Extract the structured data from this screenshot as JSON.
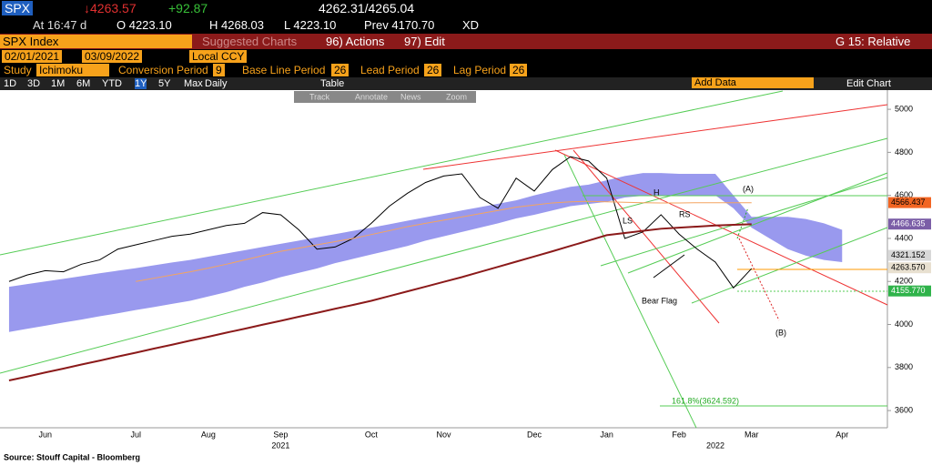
{
  "header": {
    "ticker": "SPX",
    "last": "↓4263.57",
    "change": "+92.87",
    "bid_ask": "4262.31/4265.04",
    "time": "At 16:47 d",
    "open": "O 4223.10",
    "high": "H 4268.03",
    "low": "L 4223.10",
    "prev": "Prev 4170.70",
    "flag": "XD"
  },
  "toolbar": {
    "security": "SPX Index",
    "suggested": "Suggested Charts",
    "actions": "96) Actions",
    "edit": "97) Edit",
    "relative": "G 15: Relative",
    "start_date": "02/01/2021",
    "end_date": "03/09/2022",
    "currency": "Local CCY",
    "study_label": "Study",
    "study": "Ichimoku",
    "conv_label": "Conversion Period",
    "conv": "9",
    "base_label": "Base Line Period",
    "base": "26",
    "lead_label": "Lead Period",
    "lead": "26",
    "lag_label": "Lag Period",
    "lag": "26",
    "ranges": [
      "1D",
      "3D",
      "1M",
      "6M",
      "YTD",
      "1Y",
      "5Y",
      "Max"
    ],
    "frequency": "Daily",
    "table": "Table",
    "add_data": "Add Data",
    "edit_chart": "Edit Chart",
    "tools": [
      "Track",
      "Annotate",
      "News",
      "Zoom"
    ]
  },
  "chart_data": {
    "type": "line",
    "categories": [
      null,
      null,
      "Jun",
      null,
      null,
      null,
      null,
      "Jul",
      null,
      null,
      null,
      "Aug",
      null,
      null,
      null,
      "Sep",
      null,
      null,
      null,
      null,
      "Oct",
      null,
      null,
      null,
      "Nov",
      null,
      null,
      null,
      null,
      "Dec",
      null,
      null,
      null,
      "Jan",
      null,
      null,
      null,
      "Feb",
      null,
      null,
      null,
      "Mar",
      null,
      null,
      null,
      null,
      "Apr",
      null,
      null
    ],
    "years": [
      {
        "label": "2021",
        "at": 15
      },
      {
        "label": "2022",
        "at": 39
      }
    ],
    "series": [
      {
        "color": "#000000",
        "values": [
          4200,
          4230,
          4250,
          4245,
          4280,
          4300,
          4350,
          4370,
          4390,
          4410,
          4420,
          4440,
          4460,
          4470,
          4520,
          4510,
          4440,
          4350,
          4360,
          4400,
          4470,
          4550,
          4610,
          4660,
          4690,
          4700,
          4590,
          4540,
          4680,
          4620,
          4720,
          4780,
          4760,
          4680,
          4400,
          4430,
          4510,
          4420,
          4350,
          4290,
          4170,
          4260,
          null,
          null,
          null,
          null,
          null,
          null,
          null
        ]
      },
      {
        "color": "#8b1a1a",
        "values": [
          3740,
          3758,
          3777,
          3795,
          3814,
          3832,
          3851,
          3869,
          3888,
          3906,
          3925,
          3943,
          3962,
          3980,
          3999,
          4017,
          4036,
          4054,
          4073,
          4091,
          4110,
          4132,
          4154,
          4176,
          4198,
          4220,
          4244,
          4268,
          4292,
          4316,
          4340,
          4365,
          4390,
          4415,
          4425,
          4435,
          4445,
          4450,
          4455,
          4460,
          4463,
          4466,
          null,
          null,
          null,
          null,
          null,
          null,
          null
        ]
      },
      {
        "color": "#f4a460",
        "values": [
          null,
          null,
          null,
          null,
          null,
          null,
          null,
          4200,
          4215,
          4230,
          4245,
          4262,
          4280,
          4300,
          4320,
          4340,
          4355,
          4370,
          4385,
          4400,
          4418,
          4436,
          4455,
          4470,
          4485,
          4500,
          4515,
          4530,
          4545,
          4555,
          4565,
          4570,
          4572,
          4570,
          4568,
          4566,
          4565,
          4565,
          4566,
          4566,
          4566,
          4566,
          null,
          null,
          null,
          null,
          null,
          null,
          null
        ]
      }
    ],
    "cloud": {
      "color": "#9999ee",
      "upper": [
        4175,
        4188,
        4200,
        4212,
        4225,
        4238,
        4250,
        4262,
        4275,
        4288,
        4300,
        4315,
        4330,
        4345,
        4360,
        4375,
        4390,
        4405,
        4420,
        4435,
        4450,
        4466,
        4482,
        4498,
        4514,
        4530,
        4545,
        4561,
        4577,
        4600,
        4620,
        4640,
        4650,
        4670,
        4690,
        4704,
        4704,
        4700,
        4700,
        4700,
        4600,
        4500,
        4500,
        4500,
        4490,
        4470,
        4440,
        null,
        null
      ],
      "lower": [
        3965,
        3980,
        3994,
        4009,
        4023,
        4038,
        4052,
        4067,
        4081,
        4096,
        4110,
        4130,
        4150,
        4175,
        4195,
        4220,
        4240,
        4260,
        4285,
        4305,
        4325,
        4345,
        4365,
        4390,
        4410,
        4430,
        4450,
        4470,
        4493,
        4510,
        4530,
        4550,
        4560,
        4570,
        4590,
        4598,
        4600,
        4600,
        4600,
        4600,
        4540,
        4450,
        4400,
        4350,
        4320,
        4300,
        4290,
        null,
        null
      ]
    },
    "last_values": [
      {
        "value": 4566.437,
        "label": "4566.437",
        "color": "#f26522"
      },
      {
        "value": 4466.635,
        "label": "4466.635",
        "color": "#7b5ea7"
      },
      {
        "value": 4321.152,
        "label": "4321.152",
        "color": "#d8d8d8"
      },
      {
        "value": 4263.57,
        "label": "4263.570",
        "color": "#e8e0d0"
      },
      {
        "value": 4155.77,
        "label": "4155.770",
        "color": "#2fb34a"
      }
    ],
    "ylim": [
      3520,
      5085
    ],
    "yticks": [
      3600,
      3800,
      4000,
      4200,
      4400,
      4600,
      4800,
      5000
    ],
    "annotations": {
      "ls": "LS",
      "h": "H",
      "rs": "RS",
      "bear_flag": "Bear Flag",
      "a": "(A)",
      "b": "(B)",
      "fib": "161.8%(3624.592)"
    },
    "source": "Source:  Stouff Capital - Bloomberg"
  }
}
